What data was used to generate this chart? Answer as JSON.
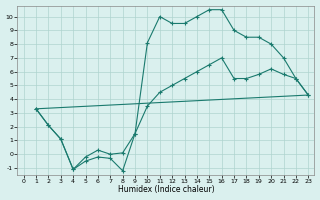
{
  "xlabel": "Humidex (Indice chaleur)",
  "bg_color": "#daf0ee",
  "grid_color": "#afd4cf",
  "line_color": "#1a7a6e",
  "xlim": [
    -0.5,
    23.5
  ],
  "ylim": [
    -1.5,
    10.8
  ],
  "yticks": [
    -1,
    0,
    1,
    2,
    3,
    4,
    5,
    6,
    7,
    8,
    9,
    10
  ],
  "xticks": [
    0,
    1,
    2,
    3,
    4,
    5,
    6,
    7,
    8,
    9,
    10,
    11,
    12,
    13,
    14,
    15,
    16,
    17,
    18,
    19,
    20,
    21,
    22,
    23
  ],
  "line1_x": [
    1,
    2,
    3,
    4,
    5,
    6,
    7,
    8,
    9,
    10,
    11,
    12,
    13,
    14,
    15,
    16,
    17,
    18,
    19,
    20,
    21,
    22,
    23
  ],
  "line1_y": [
    3.3,
    2.1,
    1.1,
    -1.1,
    -0.5,
    -0.2,
    -0.3,
    -1.2,
    1.5,
    8.1,
    10.0,
    9.5,
    9.5,
    10.0,
    10.5,
    10.5,
    9.0,
    8.5,
    8.5,
    8.0,
    7.0,
    5.5,
    4.3
  ],
  "line2_x": [
    1,
    2,
    3,
    4,
    5,
    6,
    7,
    8,
    9,
    10,
    11,
    12,
    13,
    14,
    15,
    16,
    17,
    18,
    19,
    20,
    21,
    22,
    23
  ],
  "line2_y": [
    3.3,
    2.1,
    1.1,
    -1.1,
    -0.2,
    0.3,
    0.0,
    0.1,
    1.5,
    3.5,
    4.5,
    5.0,
    5.5,
    6.0,
    6.5,
    7.0,
    5.5,
    5.5,
    5.8,
    6.2,
    5.8,
    5.5,
    4.3
  ],
  "line3_x": [
    1,
    23
  ],
  "line3_y": [
    3.3,
    4.3
  ]
}
